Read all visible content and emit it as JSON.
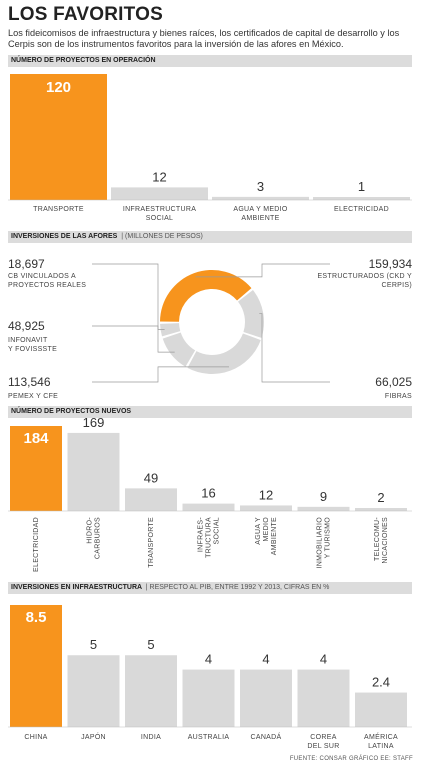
{
  "header": {
    "title": "LOS FAVORITOS",
    "intro": "Los fideicomisos de infraestructura y bienes raíces, los certificados de capital de desarrollo y los Cerpis son de los instrumentos favoritos para la inversión de las afores en México."
  },
  "sections": {
    "s1_title": "NÚMERO DE PROYECTOS EN OPERACIÓN",
    "s2_title": "INVERSIONES DE LAS AFORES",
    "s2_sub": "| (MILLONES DE PESOS)",
    "s3_title": "NÚMERO DE PROYECTOS NUEVOS",
    "s4_title": "INVERSIONES EN INFRAESTRUCTURA",
    "s4_sub": "| RESPECTO AL PIB, ENTRE 1992 Y 2013, CIFRAS EN %"
  },
  "colors": {
    "highlight": "#f7941d",
    "bar": "#d9d9d9",
    "leader": "#9a9a9a"
  },
  "footer": "FUENTE: CONSAR GRÁFICO EE: STAFF",
  "chart_data": [
    {
      "type": "bar",
      "title": "NÚMERO DE PROYECTOS EN OPERACIÓN",
      "categories": [
        "TRANSPORTE",
        "INFRAESTRUCTURA SOCIAL",
        "AGUA Y MEDIO AMBIENTE",
        "ELECTRICIDAD"
      ],
      "values": [
        120,
        12,
        3,
        1
      ],
      "highlight_index": 0
    },
    {
      "type": "pie",
      "title": "INVERSIONES DE LAS AFORES",
      "subtitle": "(MILLONES DE PESOS)",
      "slices": [
        {
          "value": "159,934",
          "amount": 159934,
          "label": "ESTRUCTURADOS (CKD Y CERPIS)",
          "highlight": true
        },
        {
          "value": "66,025",
          "amount": 66025,
          "label": "FIBRAS",
          "highlight": false
        },
        {
          "value": "113,546",
          "amount": 113546,
          "label": "PEMEX Y CFE",
          "highlight": false
        },
        {
          "value": "48,925",
          "amount": 48925,
          "label": "INFONAVIT Y FOVISSSTE",
          "highlight": false
        },
        {
          "value": "18,697",
          "amount": 18697,
          "label": "CB VINCULADOS A PROYECTOS REALES",
          "highlight": false
        }
      ]
    },
    {
      "type": "bar",
      "title": "NÚMERO DE PROYECTOS NUEVOS",
      "categories": [
        "ELECTRICIDAD",
        "HIDRO-CARBUROS",
        "TRANSPORTE",
        "INFRAES-TRUCTURA SOCIAL",
        "AGUA Y MEDIO AMBIENTE",
        "INMOBILIARIO Y TURISMO",
        "TELECOMU-NICACIONES"
      ],
      "values": [
        184,
        169,
        49,
        16,
        12,
        9,
        2
      ],
      "highlight_index": 0
    },
    {
      "type": "bar",
      "title": "INVERSIONES EN INFRAESTRUCTURA",
      "subtitle": "RESPECTO AL PIB, ENTRE 1992 Y 2013, CIFRAS EN %",
      "categories": [
        "CHINA",
        "JAPÓN",
        "INDIA",
        "AUSTRALIA",
        "CANADÁ",
        "COREA DEL SUR",
        "AMÉRICA LATINA"
      ],
      "values": [
        8.5,
        5.0,
        5.0,
        4.0,
        4.0,
        4.0,
        2.4
      ],
      "highlight_index": 0
    }
  ]
}
